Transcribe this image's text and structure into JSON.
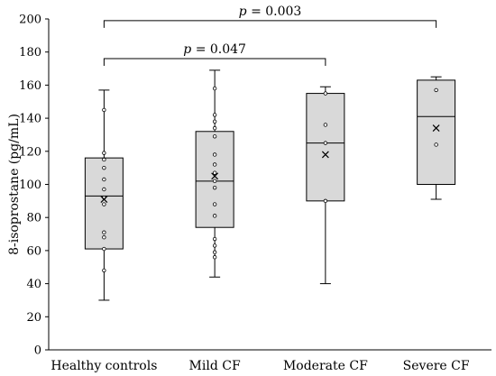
{
  "chart_data": {
    "type": "box",
    "ylabel": "8-isoprostane (pg/mL)",
    "ylim": [
      0,
      200
    ],
    "yticks": [
      0,
      20,
      40,
      60,
      80,
      100,
      120,
      140,
      160,
      180,
      200
    ],
    "grid": false,
    "categories": [
      "Healthy controls",
      "Mild CF",
      "Moderate CF",
      "Severe CF"
    ],
    "boxes": [
      {
        "category": "Healthy controls",
        "min": 30,
        "q1": 61,
        "median": 93,
        "q3": 116,
        "max": 157,
        "mean": 91,
        "points": [
          48,
          61,
          68,
          71,
          88,
          92,
          97,
          103,
          110,
          115,
          119,
          145
        ]
      },
      {
        "category": "Mild CF",
        "min": 44,
        "q1": 74,
        "median": 102,
        "q3": 132,
        "max": 169,
        "mean": 105,
        "points": [
          56,
          59,
          63,
          67,
          81,
          88,
          98,
          102,
          107,
          112,
          118,
          129,
          134,
          138,
          142,
          158
        ]
      },
      {
        "category": "Moderate CF",
        "min": 40,
        "q1": 90,
        "median": 125,
        "q3": 155,
        "max": 159,
        "mean": 118,
        "points": [
          90,
          125,
          136,
          155
        ]
      },
      {
        "category": "Severe CF",
        "min": 91,
        "q1": 100,
        "median": 141,
        "q3": 163,
        "max": 165,
        "mean": 134,
        "points": [
          124,
          157
        ]
      }
    ],
    "annotations": [
      {
        "from": "Healthy controls",
        "to": "Moderate CF",
        "text_italic": "p",
        "text_rest": " = 0.047",
        "y": 176
      },
      {
        "from": "Healthy controls",
        "to": "Severe CF",
        "text_italic": "p",
        "text_rest": " = 0.003",
        "y": 199
      }
    ]
  }
}
